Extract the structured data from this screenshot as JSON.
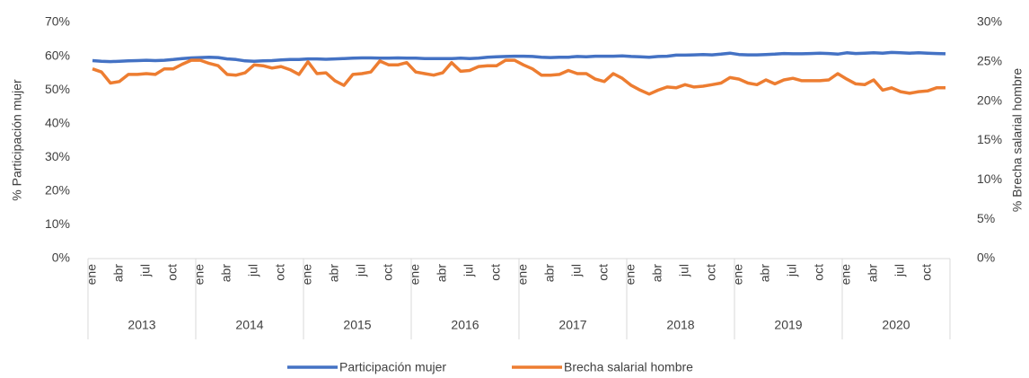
{
  "chart_data": {
    "type": "line",
    "y_label": "% Participación mujer",
    "y2_label": "% Brecha salarial hombre",
    "categories": [
      "ene",
      null,
      null,
      "abr",
      null,
      null,
      "jul",
      null,
      null,
      "oct",
      null,
      null,
      "ene",
      null,
      null,
      "abr",
      null,
      null,
      "jul",
      null,
      null,
      "oct",
      null,
      null,
      "ene",
      null,
      null,
      "abr",
      null,
      null,
      "jul",
      null,
      null,
      "oct",
      null,
      null,
      "ene",
      null,
      null,
      "abr",
      null,
      null,
      "jul",
      null,
      null,
      "oct",
      null,
      null,
      "ene",
      null,
      null,
      "abr",
      null,
      null,
      "jul",
      null,
      null,
      "oct",
      null,
      null,
      "ene",
      null,
      null,
      "abr",
      null,
      null,
      "jul",
      null,
      null,
      "oct",
      null,
      null,
      "ene",
      null,
      null,
      "abr",
      null,
      null,
      "jul",
      null,
      null,
      "oct",
      null,
      null,
      "ene",
      null,
      null,
      "abr",
      null,
      null,
      "jul",
      null,
      null,
      "oct",
      null,
      null
    ],
    "groups": [
      "2013",
      "2014",
      "2015",
      "2016",
      "2017",
      "2018",
      "2019",
      "2020"
    ],
    "series": [
      {
        "name": "Participación mujer",
        "color": "#4472c4",
        "axis": "y",
        "values": [
          58.7,
          58.5,
          58.4,
          58.5,
          58.6,
          58.7,
          58.8,
          58.7,
          58.8,
          59.0,
          59.3,
          59.5,
          59.6,
          59.7,
          59.6,
          59.2,
          59.0,
          58.6,
          58.5,
          58.6,
          58.7,
          58.9,
          59.0,
          59.0,
          59.2,
          59.2,
          59.1,
          59.2,
          59.3,
          59.4,
          59.5,
          59.5,
          59.4,
          59.4,
          59.5,
          59.4,
          59.4,
          59.3,
          59.3,
          59.3,
          59.3,
          59.4,
          59.3,
          59.4,
          59.7,
          59.8,
          59.9,
          60.0,
          60.0,
          59.9,
          59.7,
          59.6,
          59.7,
          59.7,
          59.9,
          59.8,
          60.0,
          60.0,
          60.0,
          60.1,
          59.9,
          59.8,
          59.7,
          59.9,
          60.0,
          60.3,
          60.3,
          60.4,
          60.5,
          60.4,
          60.6,
          60.9,
          60.5,
          60.4,
          60.4,
          60.5,
          60.6,
          60.8,
          60.7,
          60.7,
          60.8,
          60.9,
          60.8,
          60.6,
          61.0,
          60.8,
          60.9,
          61.0,
          60.9,
          61.1,
          61.0,
          60.9,
          61.0,
          60.9,
          60.8,
          60.7
        ]
      },
      {
        "name": "Brecha salarial hombre",
        "color": "#ed7d31",
        "axis": "y2",
        "values": [
          24.1,
          23.7,
          22.3,
          22.5,
          23.4,
          23.4,
          23.5,
          23.4,
          24.1,
          24.1,
          24.7,
          25.2,
          25.2,
          24.8,
          24.5,
          23.4,
          23.3,
          23.6,
          24.6,
          24.5,
          24.2,
          24.4,
          24.0,
          23.4,
          25.0,
          23.5,
          23.6,
          22.6,
          22.0,
          23.4,
          23.5,
          23.7,
          25.1,
          24.6,
          24.6,
          24.9,
          23.7,
          23.5,
          23.3,
          23.6,
          24.9,
          23.8,
          23.9,
          24.4,
          24.5,
          24.5,
          25.2,
          25.2,
          24.6,
          24.1,
          23.3,
          23.3,
          23.4,
          23.9,
          23.5,
          23.5,
          22.8,
          22.5,
          23.5,
          22.9,
          22.0,
          21.4,
          20.9,
          21.4,
          21.8,
          21.7,
          22.1,
          21.8,
          21.9,
          22.1,
          22.3,
          23.0,
          22.8,
          22.3,
          22.1,
          22.7,
          22.2,
          22.7,
          22.9,
          22.6,
          22.6,
          22.6,
          22.7,
          23.5,
          22.8,
          22.2,
          22.1,
          22.7,
          21.4,
          21.7,
          21.2,
          21.0,
          21.2,
          21.3,
          21.7,
          21.7
        ]
      }
    ],
    "ylim": [
      0,
      70
    ],
    "yticks": [
      {
        "value": 0,
        "label": "0%"
      },
      {
        "value": 10,
        "label": "10%"
      },
      {
        "value": 20,
        "label": "20%"
      },
      {
        "value": 30,
        "label": "30%"
      },
      {
        "value": 40,
        "label": "40%"
      },
      {
        "value": 50,
        "label": "50%"
      },
      {
        "value": 60,
        "label": "60%"
      },
      {
        "value": 70,
        "label": "70%"
      }
    ],
    "y2lim": [
      0,
      30
    ],
    "y2ticks": [
      {
        "value": 0,
        "label": "0%"
      },
      {
        "value": 5,
        "label": "5%"
      },
      {
        "value": 10,
        "label": "10%"
      },
      {
        "value": 15,
        "label": "15%"
      },
      {
        "value": 20,
        "label": "20%"
      },
      {
        "value": 25,
        "label": "25%"
      },
      {
        "value": 30,
        "label": "30%"
      }
    ],
    "grid": false,
    "legend": "bottom"
  }
}
